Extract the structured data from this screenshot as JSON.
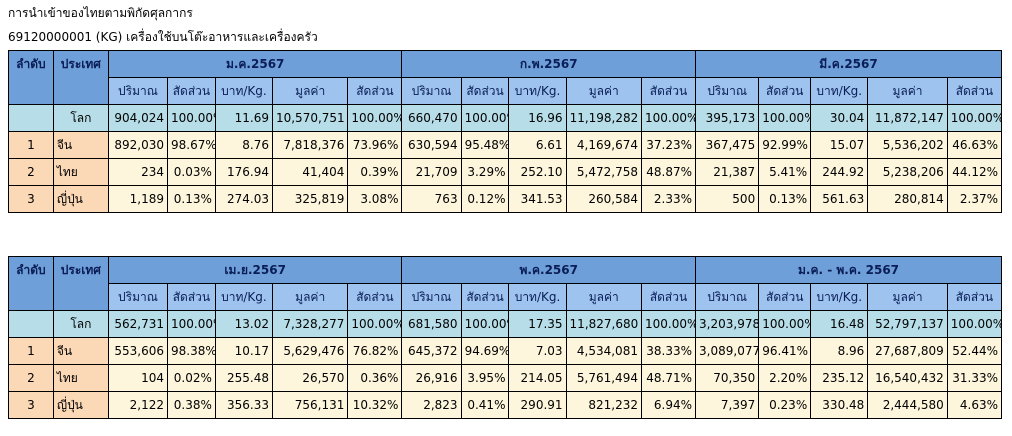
{
  "title": "การนำเข้าของไทยตามพิกัดศุลกากร",
  "subtitle": "69120000001 (KG) เครื่องใช้บนโต๊ะอาหารและเครื่องครัว",
  "col_rank": "ลำดับ",
  "col_country": "ประเทศ",
  "subheaders": [
    "ปริมาณ",
    "สัดส่วน",
    "บาท/Kg.",
    "มูลค่า",
    "สัดส่วน"
  ],
  "tables": [
    {
      "periods": [
        "ม.ค.2567",
        "ก.พ.2567",
        "มี.ค.2567"
      ],
      "rows": [
        {
          "rank": "",
          "country": "โลก",
          "cells": [
            "904,024",
            "100.00%",
            "11.69",
            "10,570,751",
            "100.00%",
            "660,470",
            "100.00%",
            "16.96",
            "11,198,282",
            "100.00%",
            "395,173",
            "100.00%",
            "30.04",
            "11,872,147",
            "100.00%"
          ]
        },
        {
          "rank": "1",
          "country": "จีน",
          "cells": [
            "892,030",
            "98.67%",
            "8.76",
            "7,818,376",
            "73.96%",
            "630,594",
            "95.48%",
            "6.61",
            "4,169,674",
            "37.23%",
            "367,475",
            "92.99%",
            "15.07",
            "5,536,202",
            "46.63%"
          ]
        },
        {
          "rank": "2",
          "country": "ไทย",
          "cells": [
            "234",
            "0.03%",
            "176.94",
            "41,404",
            "0.39%",
            "21,709",
            "3.29%",
            "252.10",
            "5,472,758",
            "48.87%",
            "21,387",
            "5.41%",
            "244.92",
            "5,238,206",
            "44.12%"
          ]
        },
        {
          "rank": "3",
          "country": "ญี่ปุ่น",
          "cells": [
            "1,189",
            "0.13%",
            "274.03",
            "325,819",
            "3.08%",
            "763",
            "0.12%",
            "341.53",
            "260,584",
            "2.33%",
            "500",
            "0.13%",
            "561.63",
            "280,814",
            "2.37%"
          ]
        }
      ]
    },
    {
      "periods": [
        "เม.ย.2567",
        "พ.ค.2567",
        "ม.ค. - พ.ค.  2567"
      ],
      "rows": [
        {
          "rank": "",
          "country": "โลก",
          "cells": [
            "562,731",
            "100.00%",
            "13.02",
            "7,328,277",
            "100.00%",
            "681,580",
            "100.00%",
            "17.35",
            "11,827,680",
            "100.00%",
            "3,203,978",
            "100.00%",
            "16.48",
            "52,797,137",
            "100.00%"
          ]
        },
        {
          "rank": "1",
          "country": "จีน",
          "cells": [
            "553,606",
            "98.38%",
            "10.17",
            "5,629,476",
            "76.82%",
            "645,372",
            "94.69%",
            "7.03",
            "4,534,081",
            "38.33%",
            "3,089,077",
            "96.41%",
            "8.96",
            "27,687,809",
            "52.44%"
          ]
        },
        {
          "rank": "2",
          "country": "ไทย",
          "cells": [
            "104",
            "0.02%",
            "255.48",
            "26,570",
            "0.36%",
            "26,916",
            "3.95%",
            "214.05",
            "5,761,494",
            "48.71%",
            "70,350",
            "2.20%",
            "235.12",
            "16,540,432",
            "31.33%"
          ]
        },
        {
          "rank": "3",
          "country": "ญี่ปุ่น",
          "cells": [
            "2,122",
            "0.38%",
            "356.33",
            "756,131",
            "10.32%",
            "2,823",
            "0.41%",
            "290.91",
            "821,232",
            "6.94%",
            "7,397",
            "0.23%",
            "330.48",
            "2,444,580",
            "4.63%"
          ]
        }
      ]
    }
  ]
}
